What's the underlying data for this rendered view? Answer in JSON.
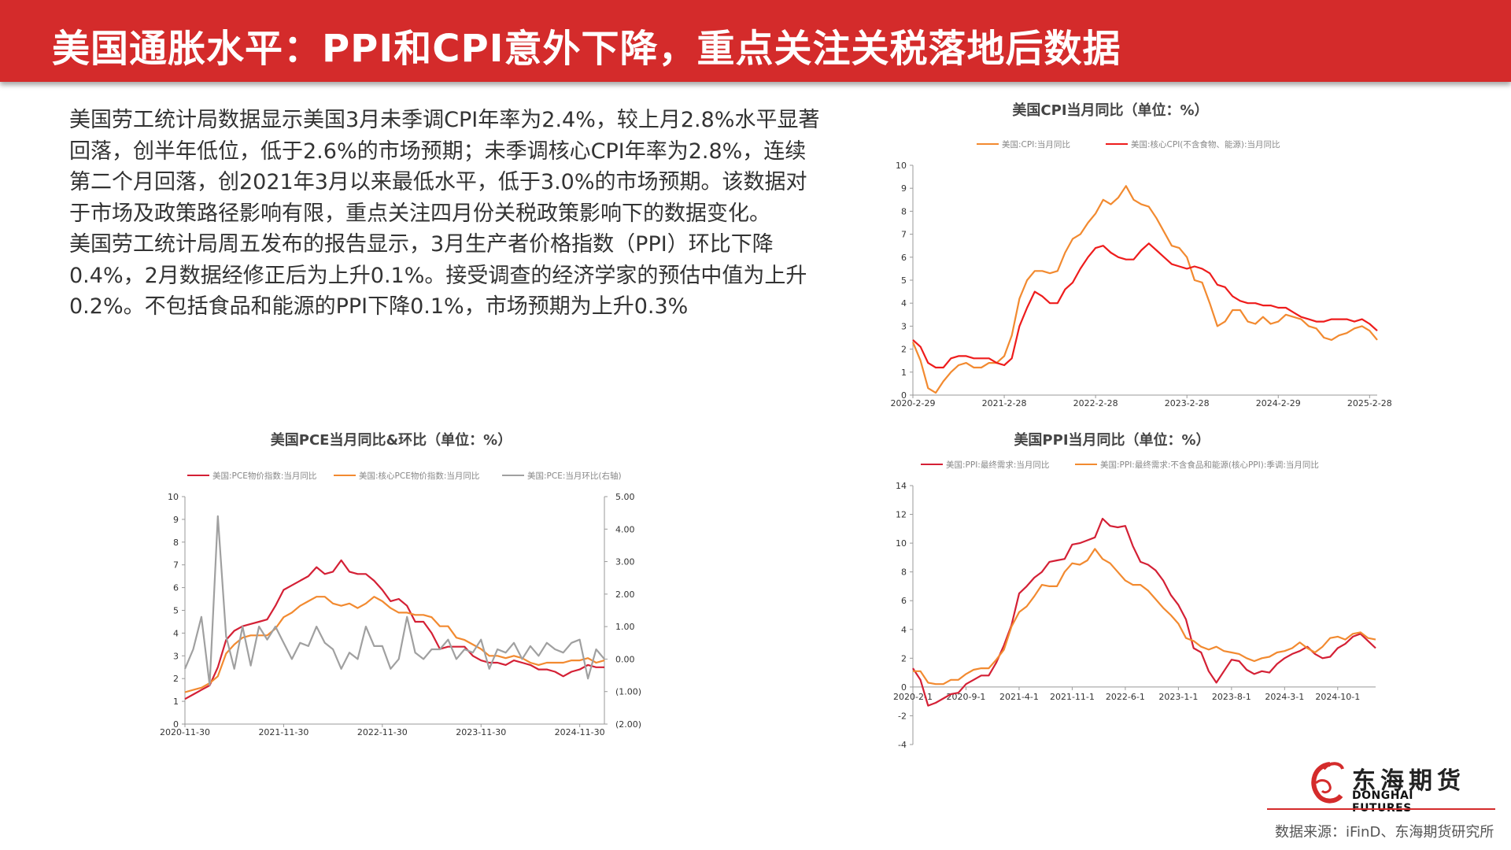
{
  "header": {
    "title": "美国通胀水平：PPI和CPI意外下降，重点关注关税落地后数据"
  },
  "body": {
    "paragraphs": [
      "美国劳工统计局数据显示美国3月未季调CPI年率为2.4%，较上月2.8%水平显著回落，创半年低位，低于2.6%的市场预期；未季调核心CPI年率为2.8%，连续第二个月回落，创2021年3月以来最低水平，低于3.0%的市场预期。该数据对于市场及政策路径影响有限，重点关注四月份关税政策影响下的数据变化。",
      "美国劳工统计局周五发布的报告显示，3月生产者价格指数（PPI）环比下降0.4%，2月数据经修正后为上升0.1%。接受调查的经济学家的预估中值为上升0.2%。不包括食品和能源的PPI下降0.1%，市场预期为上升0.3%"
    ]
  },
  "footer": {
    "logo_cn": "东海期货",
    "logo_en": "DONGHAI FUTURES",
    "source": "数据来源：iFinD、东海期货研究所"
  },
  "chart_data": [
    {
      "id": "cpi",
      "type": "line",
      "title": "美国CPI当月同比（单位：%）",
      "ylim": [
        0,
        10
      ],
      "yticks": [
        0,
        1,
        2,
        3,
        4,
        5,
        6,
        7,
        8,
        9,
        10
      ],
      "x_start": "2020-02",
      "x_end": "2025-03",
      "frequency": "monthly",
      "xtick_labels": [
        "2020-2-29",
        "2021-2-28",
        "2022-2-28",
        "2023-2-28",
        "2024-2-29",
        "2025-2-28"
      ],
      "xtick_index": [
        0,
        12,
        24,
        36,
        48,
        60
      ],
      "series": [
        {
          "name": "美国:CPI:当月同比",
          "color": "#f28a30",
          "values": [
            2.3,
            1.5,
            0.3,
            0.1,
            0.6,
            1.0,
            1.3,
            1.4,
            1.2,
            1.2,
            1.4,
            1.4,
            1.7,
            2.6,
            4.2,
            5.0,
            5.4,
            5.4,
            5.3,
            5.4,
            6.2,
            6.8,
            7.0,
            7.5,
            7.9,
            8.5,
            8.3,
            8.6,
            9.1,
            8.5,
            8.3,
            8.2,
            7.7,
            7.1,
            6.5,
            6.4,
            6.0,
            5.0,
            4.9,
            4.0,
            3.0,
            3.2,
            3.7,
            3.7,
            3.2,
            3.1,
            3.4,
            3.1,
            3.2,
            3.5,
            3.4,
            3.3,
            3.0,
            2.9,
            2.5,
            2.4,
            2.6,
            2.7,
            2.9,
            3.0,
            2.8,
            2.4
          ]
        },
        {
          "name": "美国:核心CPI(不含食物、能源):当月同比",
          "color": "#ee1c1c",
          "values": [
            2.4,
            2.1,
            1.4,
            1.2,
            1.2,
            1.6,
            1.7,
            1.7,
            1.6,
            1.6,
            1.6,
            1.4,
            1.3,
            1.6,
            3.0,
            3.8,
            4.5,
            4.3,
            4.0,
            4.0,
            4.6,
            4.9,
            5.5,
            6.0,
            6.4,
            6.5,
            6.2,
            6.0,
            5.9,
            5.9,
            6.3,
            6.6,
            6.3,
            6.0,
            5.7,
            5.6,
            5.5,
            5.6,
            5.5,
            5.3,
            4.8,
            4.7,
            4.3,
            4.1,
            4.0,
            4.0,
            3.9,
            3.9,
            3.8,
            3.8,
            3.6,
            3.4,
            3.3,
            3.2,
            3.2,
            3.3,
            3.3,
            3.3,
            3.2,
            3.3,
            3.1,
            2.8
          ]
        }
      ]
    },
    {
      "id": "ppi",
      "type": "line",
      "title": "美国PPI当月同比（单位：%）",
      "ylim": [
        -4,
        14
      ],
      "yticks": [
        -4,
        -2,
        0,
        2,
        4,
        6,
        8,
        10,
        12,
        14
      ],
      "x_start": "2020-02",
      "x_end": "2025-03",
      "frequency": "monthly",
      "xtick_labels": [
        "2020-2-1",
        "2020-9-1",
        "2021-4-1",
        "2021-11-1",
        "2022-6-1",
        "2023-1-1",
        "2023-8-1",
        "2024-3-1",
        "2024-10-1"
      ],
      "xtick_index": [
        0,
        7,
        14,
        21,
        28,
        35,
        42,
        49,
        56
      ],
      "series": [
        {
          "name": "美国:PPI:最终需求:当月同比",
          "color": "#d42035",
          "values": [
            1.3,
            0.5,
            -1.3,
            -1.1,
            -0.8,
            -0.5,
            -0.4,
            0.2,
            0.5,
            0.8,
            0.8,
            1.7,
            2.9,
            4.3,
            6.5,
            7.0,
            7.6,
            8.0,
            8.7,
            8.8,
            8.9,
            9.9,
            10.0,
            10.2,
            10.4,
            11.7,
            11.2,
            11.1,
            11.2,
            9.8,
            8.7,
            8.5,
            8.1,
            7.4,
            6.4,
            5.7,
            4.7,
            2.7,
            2.4,
            1.1,
            0.3,
            1.1,
            1.9,
            1.8,
            1.2,
            0.9,
            1.1,
            1.0,
            1.6,
            2.0,
            2.3,
            2.5,
            2.8,
            2.3,
            2.0,
            2.1,
            2.7,
            3.0,
            3.5,
            3.7,
            3.2,
            2.7
          ]
        },
        {
          "name": "美国:PPI:最终需求:不含食品和能源(核心PPI):季调:当月同比",
          "color": "#f28a30",
          "values": [
            1.1,
            1.1,
            0.3,
            0.2,
            0.2,
            0.5,
            0.5,
            0.9,
            1.2,
            1.3,
            1.3,
            1.9,
            2.6,
            4.2,
            5.2,
            5.6,
            6.3,
            7.1,
            7.0,
            7.0,
            8.0,
            8.6,
            8.5,
            8.8,
            9.6,
            8.9,
            8.6,
            8.0,
            7.4,
            7.1,
            7.1,
            6.7,
            6.1,
            5.5,
            5.0,
            4.4,
            3.4,
            3.2,
            2.8,
            2.6,
            2.8,
            2.5,
            2.4,
            2.3,
            2.0,
            1.8,
            2.0,
            2.1,
            2.4,
            2.5,
            2.7,
            3.1,
            2.7,
            2.4,
            2.8,
            3.4,
            3.5,
            3.3,
            3.7,
            3.8,
            3.4,
            3.3
          ]
        }
      ]
    },
    {
      "id": "pce",
      "type": "line",
      "title": "美国PCE当月同比&环比（单位：%）",
      "ylim": [
        0,
        10
      ],
      "yticks": [
        0,
        1,
        2,
        3,
        4,
        5,
        6,
        7,
        8,
        9,
        10
      ],
      "y2lim": [
        -2,
        5
      ],
      "y2ticks": [
        5,
        4,
        3,
        2,
        1,
        0,
        -1,
        -2
      ],
      "y2tick_labels": [
        "5.00",
        "4.00",
        "3.00",
        "2.00",
        "1.00",
        "0.00",
        "(1.00)",
        "(2.00)"
      ],
      "negative_color": "#e02020",
      "x_start": "2020-11",
      "x_end": "2025-02",
      "frequency": "monthly",
      "xtick_labels": [
        "2020-11-30",
        "2021-11-30",
        "2022-11-30",
        "2023-11-30",
        "2024-11-30"
      ],
      "xtick_index": [
        0,
        12,
        24,
        36,
        48
      ],
      "series": [
        {
          "name": "美国:PCE物价指数:当月同比",
          "color": "#d42035",
          "axis": "left",
          "values": [
            1.1,
            1.3,
            1.5,
            1.7,
            2.5,
            3.7,
            4.1,
            4.3,
            4.4,
            4.5,
            4.6,
            5.2,
            5.9,
            6.1,
            6.3,
            6.5,
            6.9,
            6.6,
            6.7,
            7.2,
            6.7,
            6.6,
            6.6,
            6.3,
            5.9,
            5.4,
            5.5,
            5.2,
            4.5,
            4.5,
            4.0,
            3.3,
            3.4,
            3.4,
            3.4,
            3.0,
            2.8,
            2.7,
            2.7,
            2.6,
            2.8,
            2.7,
            2.6,
            2.4,
            2.4,
            2.3,
            2.1,
            2.3,
            2.4,
            2.6,
            2.5,
            2.5
          ]
        },
        {
          "name": "美国:核心PCE物价指数:当月同比",
          "color": "#f28a30",
          "axis": "left",
          "values": [
            1.4,
            1.5,
            1.6,
            1.8,
            2.1,
            3.1,
            3.5,
            3.8,
            3.9,
            3.9,
            3.9,
            4.2,
            4.7,
            4.9,
            5.2,
            5.4,
            5.6,
            5.6,
            5.3,
            5.2,
            5.3,
            5.1,
            5.3,
            5.6,
            5.4,
            5.1,
            4.9,
            4.9,
            4.8,
            4.8,
            4.7,
            4.3,
            4.3,
            3.8,
            3.7,
            3.5,
            3.3,
            3.0,
            3.0,
            2.9,
            3.0,
            2.9,
            2.7,
            2.6,
            2.7,
            2.7,
            2.7,
            2.8,
            2.8,
            2.9,
            2.7,
            2.8
          ]
        },
        {
          "name": "美国:PCE:当月环比(右轴)",
          "color": "#a0a0a0",
          "axis": "right",
          "values": [
            -0.3,
            0.3,
            1.3,
            -0.8,
            4.4,
            0.7,
            -0.3,
            1.0,
            -0.2,
            1.0,
            0.6,
            1.0,
            0.5,
            0.0,
            0.5,
            0.4,
            1.0,
            0.5,
            0.3,
            -0.3,
            0.2,
            0.0,
            1.0,
            0.4,
            0.4,
            -0.3,
            0.0,
            1.3,
            0.2,
            0.0,
            0.3,
            0.3,
            0.6,
            0.0,
            0.3,
            0.2,
            0.6,
            -0.3,
            0.3,
            0.2,
            0.5,
            0.0,
            0.4,
            0.1,
            0.5,
            0.3,
            0.2,
            0.5,
            0.6,
            -0.6,
            0.3,
            0.0
          ]
        }
      ]
    }
  ]
}
